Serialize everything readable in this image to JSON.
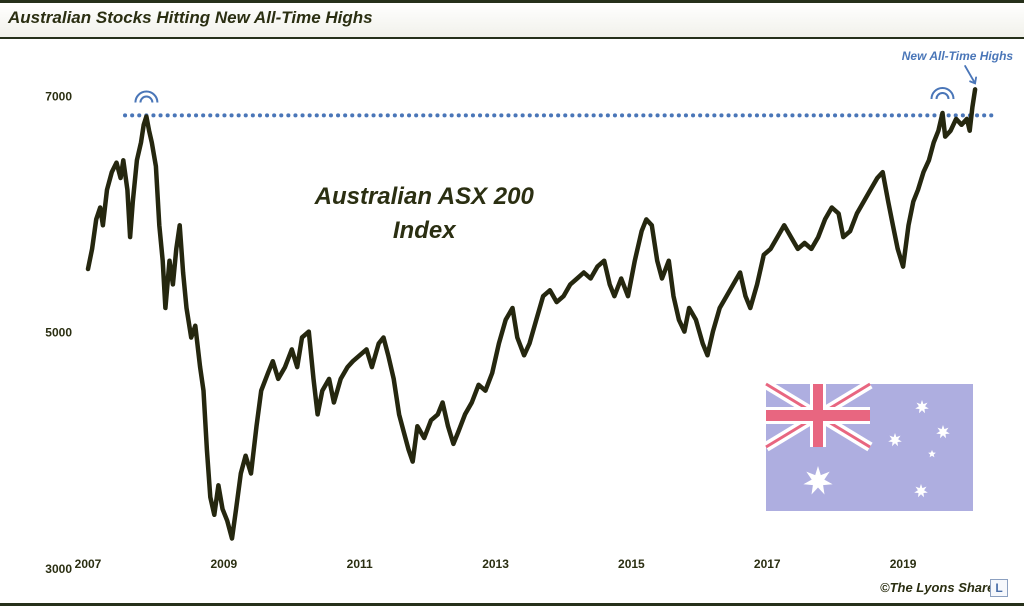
{
  "title": "Australian Stocks Hitting New All-Time Highs",
  "chart_data": {
    "type": "line",
    "title": "",
    "subtitle": "",
    "xlabel": "",
    "ylabel": "",
    "ylim": [
      3000,
      7400
    ],
    "xlim": [
      2007.0,
      2020.25
    ],
    "y_ticks": [
      3000,
      5000,
      7000
    ],
    "x_ticks": [
      2007,
      2009,
      2011,
      2013,
      2015,
      2017,
      2019
    ],
    "grid": false,
    "series": [
      {
        "name": "",
        "color": "#25270f",
        "points": [
          [
            2007.0,
            5530
          ],
          [
            2007.06,
            5700
          ],
          [
            2007.12,
            5950
          ],
          [
            2007.18,
            6050
          ],
          [
            2007.22,
            5900
          ],
          [
            2007.28,
            6200
          ],
          [
            2007.35,
            6350
          ],
          [
            2007.42,
            6430
          ],
          [
            2007.48,
            6300
          ],
          [
            2007.52,
            6450
          ],
          [
            2007.58,
            6200
          ],
          [
            2007.62,
            5800
          ],
          [
            2007.66,
            6100
          ],
          [
            2007.72,
            6450
          ],
          [
            2007.78,
            6600
          ],
          [
            2007.82,
            6750
          ],
          [
            2007.86,
            6820
          ],
          [
            2007.9,
            6700
          ],
          [
            2007.94,
            6600
          ],
          [
            2008.0,
            6400
          ],
          [
            2008.05,
            5900
          ],
          [
            2008.1,
            5600
          ],
          [
            2008.14,
            5200
          ],
          [
            2008.2,
            5600
          ],
          [
            2008.25,
            5400
          ],
          [
            2008.3,
            5700
          ],
          [
            2008.35,
            5900
          ],
          [
            2008.4,
            5500
          ],
          [
            2008.45,
            5200
          ],
          [
            2008.52,
            4950
          ],
          [
            2008.58,
            5050
          ],
          [
            2008.65,
            4700
          ],
          [
            2008.7,
            4500
          ],
          [
            2008.75,
            4000
          ],
          [
            2008.8,
            3600
          ],
          [
            2008.86,
            3450
          ],
          [
            2008.92,
            3700
          ],
          [
            2008.98,
            3500
          ],
          [
            2009.05,
            3400
          ],
          [
            2009.12,
            3250
          ],
          [
            2009.18,
            3500
          ],
          [
            2009.25,
            3800
          ],
          [
            2009.32,
            3950
          ],
          [
            2009.4,
            3800
          ],
          [
            2009.48,
            4200
          ],
          [
            2009.55,
            4500
          ],
          [
            2009.65,
            4650
          ],
          [
            2009.72,
            4750
          ],
          [
            2009.8,
            4600
          ],
          [
            2009.9,
            4700
          ],
          [
            2010.0,
            4850
          ],
          [
            2010.08,
            4700
          ],
          [
            2010.15,
            4950
          ],
          [
            2010.25,
            5000
          ],
          [
            2010.32,
            4600
          ],
          [
            2010.38,
            4300
          ],
          [
            2010.45,
            4500
          ],
          [
            2010.55,
            4600
          ],
          [
            2010.62,
            4400
          ],
          [
            2010.72,
            4600
          ],
          [
            2010.82,
            4700
          ],
          [
            2010.9,
            4750
          ],
          [
            2011.0,
            4800
          ],
          [
            2011.1,
            4850
          ],
          [
            2011.18,
            4700
          ],
          [
            2011.28,
            4900
          ],
          [
            2011.35,
            4950
          ],
          [
            2011.42,
            4800
          ],
          [
            2011.5,
            4600
          ],
          [
            2011.58,
            4300
          ],
          [
            2011.65,
            4150
          ],
          [
            2011.72,
            4000
          ],
          [
            2011.78,
            3900
          ],
          [
            2011.85,
            4200
          ],
          [
            2011.95,
            4100
          ],
          [
            2012.05,
            4250
          ],
          [
            2012.15,
            4300
          ],
          [
            2012.22,
            4400
          ],
          [
            2012.3,
            4200
          ],
          [
            2012.38,
            4050
          ],
          [
            2012.45,
            4150
          ],
          [
            2012.55,
            4300
          ],
          [
            2012.65,
            4400
          ],
          [
            2012.75,
            4550
          ],
          [
            2012.85,
            4500
          ],
          [
            2012.95,
            4650
          ],
          [
            2013.05,
            4900
          ],
          [
            2013.15,
            5100
          ],
          [
            2013.25,
            5200
          ],
          [
            2013.32,
            4950
          ],
          [
            2013.42,
            4800
          ],
          [
            2013.5,
            4900
          ],
          [
            2013.6,
            5100
          ],
          [
            2013.7,
            5300
          ],
          [
            2013.8,
            5350
          ],
          [
            2013.9,
            5250
          ],
          [
            2014.0,
            5300
          ],
          [
            2014.1,
            5400
          ],
          [
            2014.2,
            5450
          ],
          [
            2014.3,
            5500
          ],
          [
            2014.4,
            5450
          ],
          [
            2014.5,
            5550
          ],
          [
            2014.6,
            5600
          ],
          [
            2014.68,
            5400
          ],
          [
            2014.75,
            5300
          ],
          [
            2014.85,
            5450
          ],
          [
            2014.95,
            5300
          ],
          [
            2015.05,
            5600
          ],
          [
            2015.15,
            5850
          ],
          [
            2015.22,
            5950
          ],
          [
            2015.3,
            5900
          ],
          [
            2015.38,
            5600
          ],
          [
            2015.45,
            5450
          ],
          [
            2015.55,
            5600
          ],
          [
            2015.62,
            5300
          ],
          [
            2015.7,
            5100
          ],
          [
            2015.78,
            5000
          ],
          [
            2015.85,
            5200
          ],
          [
            2015.95,
            5100
          ],
          [
            2016.05,
            4900
          ],
          [
            2016.12,
            4800
          ],
          [
            2016.2,
            5000
          ],
          [
            2016.3,
            5200
          ],
          [
            2016.4,
            5300
          ],
          [
            2016.5,
            5400
          ],
          [
            2016.6,
            5500
          ],
          [
            2016.68,
            5300
          ],
          [
            2016.75,
            5200
          ],
          [
            2016.85,
            5400
          ],
          [
            2016.95,
            5650
          ],
          [
            2017.05,
            5700
          ],
          [
            2017.15,
            5800
          ],
          [
            2017.25,
            5900
          ],
          [
            2017.35,
            5800
          ],
          [
            2017.45,
            5700
          ],
          [
            2017.55,
            5750
          ],
          [
            2017.65,
            5700
          ],
          [
            2017.75,
            5800
          ],
          [
            2017.85,
            5950
          ],
          [
            2017.95,
            6050
          ],
          [
            2018.05,
            6000
          ],
          [
            2018.12,
            5800
          ],
          [
            2018.22,
            5850
          ],
          [
            2018.32,
            6000
          ],
          [
            2018.42,
            6100
          ],
          [
            2018.52,
            6200
          ],
          [
            2018.62,
            6300
          ],
          [
            2018.7,
            6350
          ],
          [
            2018.78,
            6100
          ],
          [
            2018.85,
            5900
          ],
          [
            2018.92,
            5700
          ],
          [
            2019.0,
            5550
          ],
          [
            2019.08,
            5900
          ],
          [
            2019.15,
            6100
          ],
          [
            2019.22,
            6200
          ],
          [
            2019.3,
            6350
          ],
          [
            2019.38,
            6450
          ],
          [
            2019.45,
            6600
          ],
          [
            2019.52,
            6700
          ],
          [
            2019.58,
            6850
          ],
          [
            2019.62,
            6650
          ],
          [
            2019.7,
            6700
          ],
          [
            2019.78,
            6800
          ],
          [
            2019.86,
            6750
          ],
          [
            2019.94,
            6800
          ],
          [
            2019.98,
            6700
          ],
          [
            2020.02,
            6900
          ],
          [
            2020.06,
            7050
          ]
        ]
      }
    ],
    "reference_line": {
      "value": 6830,
      "style": "dotted",
      "color": "#4a76b8"
    },
    "annotations": [
      {
        "label_lines": [
          "Australian ASX 200",
          "Index"
        ],
        "x": 2011.95,
        "y": 6080
      },
      {
        "label_lines": [
          "New All-Time Highs"
        ],
        "x": 2019.8,
        "y": 7300,
        "arrow_to": [
          2020.06,
          7050
        ]
      }
    ]
  },
  "copyright": "©The Lyons Share",
  "logo_letter": "L"
}
